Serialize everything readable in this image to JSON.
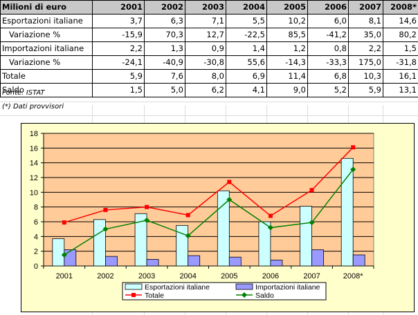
{
  "table": {
    "header": [
      "Milioni di euro",
      "2001",
      "2002",
      "2003",
      "2004",
      "2005",
      "2006",
      "2007",
      "2008*"
    ],
    "rows": [
      {
        "label": "Esportazioni italiane",
        "indent": false,
        "values": [
          "3,7",
          "6,3",
          "7,1",
          "5,5",
          "10,2",
          "6,0",
          "8,1",
          "14,6"
        ]
      },
      {
        "label": "Variazione %",
        "indent": true,
        "values": [
          "-15,9",
          "70,3",
          "12,7",
          "-22,5",
          "85,5",
          "-41,2",
          "35,0",
          "80,2"
        ]
      },
      {
        "label": "Importazioni italiane",
        "indent": false,
        "values": [
          "2,2",
          "1,3",
          "0,9",
          "1,4",
          "1,2",
          "0,8",
          "2,2",
          "1,5"
        ]
      },
      {
        "label": "Variazione %",
        "indent": true,
        "values": [
          "-24,1",
          "-40,9",
          "-30,8",
          "55,6",
          "-14,3",
          "-33,3",
          "175,0",
          "-31,8"
        ]
      },
      {
        "label": "Totale",
        "indent": false,
        "values": [
          "5,9",
          "7,6",
          "8,0",
          "6,9",
          "11,4",
          "6,8",
          "10,3",
          "16,1"
        ]
      },
      {
        "label": "Saldo",
        "indent": false,
        "values": [
          "1,5",
          "5,0",
          "6,2",
          "4,1",
          "9,0",
          "5,2",
          "5,9",
          "13,1"
        ]
      }
    ]
  },
  "notes": {
    "source": "Fonte: ISTAT",
    "provisional": "(*) Dati provvisori"
  },
  "chart_data": {
    "type": "bar",
    "categories": [
      "2001",
      "2002",
      "2003",
      "2004",
      "2005",
      "2006",
      "2007",
      "2008*"
    ],
    "ylim": [
      0,
      18
    ],
    "yticks": [
      0,
      2,
      4,
      6,
      8,
      10,
      12,
      14,
      16,
      18
    ],
    "grid": true,
    "legend_position": "bottom",
    "series": [
      {
        "name": "Esportazioni italiane",
        "kind": "bar",
        "color": "#ccffff",
        "values": [
          3.7,
          6.3,
          7.1,
          5.5,
          10.2,
          6.0,
          8.1,
          14.6
        ]
      },
      {
        "name": "Importazioni italiane",
        "kind": "bar",
        "color": "#9999ff",
        "values": [
          2.2,
          1.3,
          0.9,
          1.4,
          1.2,
          0.8,
          2.2,
          1.5
        ]
      },
      {
        "name": "Totale",
        "kind": "line",
        "color": "#ff0000",
        "marker": "square",
        "values": [
          5.9,
          7.6,
          8.0,
          6.9,
          11.4,
          6.8,
          10.3,
          16.1
        ]
      },
      {
        "name": "Saldo",
        "kind": "line",
        "color": "#008000",
        "marker": "diamond",
        "values": [
          1.5,
          5.0,
          6.2,
          4.1,
          9.0,
          5.2,
          5.9,
          13.1
        ]
      }
    ],
    "colors": {
      "plot_bg": "#ffcc99",
      "chart_bg": "#ffffcc"
    }
  }
}
